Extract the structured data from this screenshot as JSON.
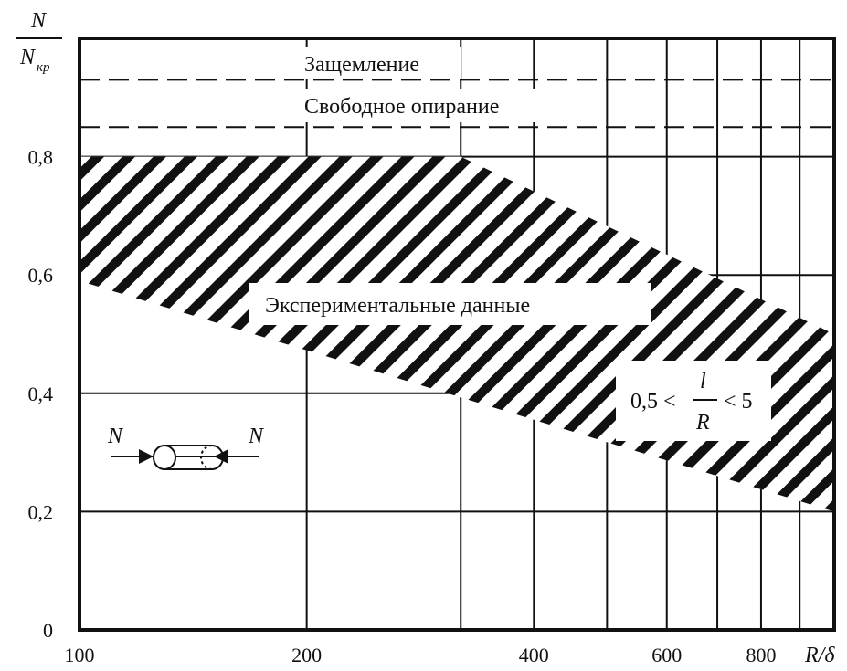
{
  "chart_data": {
    "type": "area",
    "x_axis_label": "R/δ",
    "y_axis_label": {
      "numerator": "N",
      "denominator_main": "N",
      "denominator_sub": "кр"
    },
    "x_scale": "log",
    "x_range": [
      100,
      1000
    ],
    "y_range": [
      0,
      1.0
    ],
    "x_ticks": [
      {
        "value": 100,
        "label": "100"
      },
      {
        "value": 200,
        "label": "200"
      },
      {
        "value": 400,
        "label": "400"
      },
      {
        "value": 600,
        "label": "600"
      },
      {
        "value": 800,
        "label": "800"
      }
    ],
    "y_ticks": [
      {
        "value": 0,
        "label": "0"
      },
      {
        "value": 0.2,
        "label": "0,2"
      },
      {
        "value": 0.4,
        "label": "0,4"
      },
      {
        "value": 0.6,
        "label": "0,6"
      },
      {
        "value": 0.8,
        "label": "0,8"
      }
    ],
    "grid_x": [
      200,
      320,
      400,
      500,
      600,
      700,
      800,
      900
    ],
    "dashed_lines": [
      {
        "y": 0.93,
        "label": "Защемление"
      },
      {
        "y": 0.85,
        "label": "Свободное опирание"
      }
    ],
    "region": {
      "label": "Экспериментальные данные",
      "upper_boundary": [
        [
          100,
          0.8
        ],
        [
          320,
          0.8
        ],
        [
          1000,
          0.5
        ]
      ],
      "lower_boundary": [
        [
          100,
          0.59
        ],
        [
          1000,
          0.2
        ]
      ]
    },
    "condition": {
      "left": "0,5 <",
      "numerator": "l",
      "denominator": "R",
      "right": "< 5"
    },
    "inset": {
      "left_force": "N",
      "right_force": "N"
    }
  }
}
